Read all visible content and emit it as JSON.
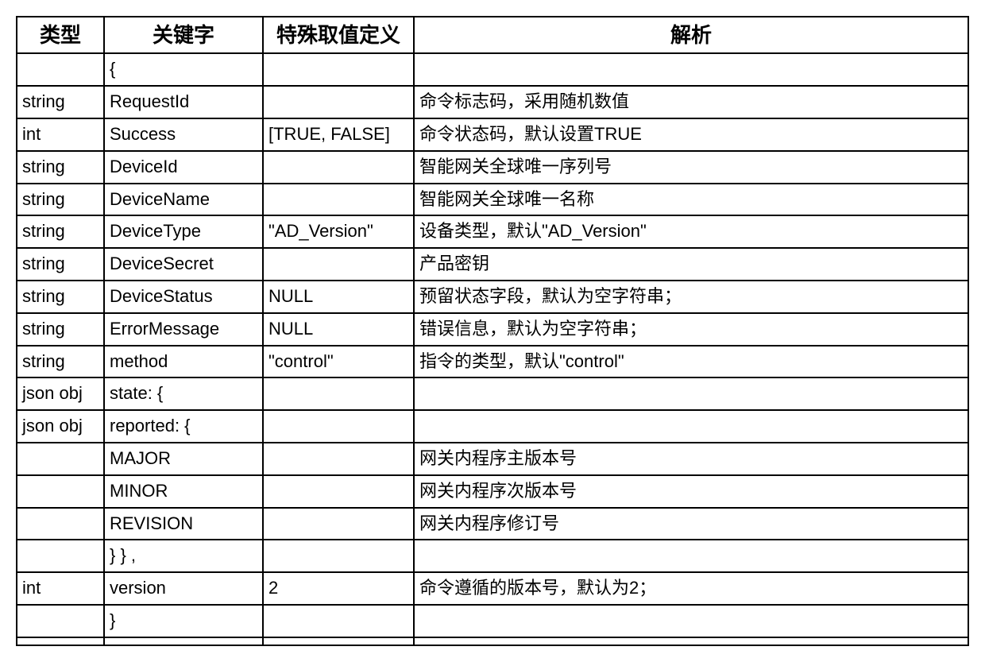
{
  "headers": {
    "type": "类型",
    "keyword": "关键字",
    "special": "特殊取值定义",
    "desc": "解析"
  },
  "rows": [
    {
      "type": "",
      "keyword": "{",
      "special": "",
      "desc": ""
    },
    {
      "type": "string",
      "keyword": "RequestId",
      "special": "",
      "desc": "命令标志码，采用随机数值"
    },
    {
      "type": "int",
      "keyword": "Success",
      "special": "[TRUE, FALSE]",
      "desc": "命令状态码，默认设置TRUE"
    },
    {
      "type": "string",
      "keyword": "DeviceId",
      "special": "",
      "desc": "智能网关全球唯一序列号"
    },
    {
      "type": "string",
      "keyword": "DeviceName",
      "special": "",
      "desc": "智能网关全球唯一名称"
    },
    {
      "type": "string",
      "keyword": "DeviceType",
      "special": "\"AD_Version\"",
      "desc": "设备类型，默认\"AD_Version\""
    },
    {
      "type": "string",
      "keyword": "DeviceSecret",
      "special": "",
      "desc": "产品密钥"
    },
    {
      "type": "string",
      "keyword": "DeviceStatus",
      "special": "NULL",
      "desc": "预留状态字段，默认为空字符串；"
    },
    {
      "type": "string",
      "keyword": "ErrorMessage",
      "special": "NULL",
      "desc": "错误信息，默认为空字符串；"
    },
    {
      "type": "string",
      "keyword": "method",
      "special": "\"control\"",
      "desc": "指令的类型，默认\"control\""
    },
    {
      "type": "json obj",
      "keyword": "state: {",
      "special": "",
      "desc": ""
    },
    {
      "type": "json obj",
      "keyword": "reported: {",
      "special": "",
      "desc": ""
    },
    {
      "type": "",
      "keyword": "MAJOR",
      "special": "",
      "desc": "网关内程序主版本号"
    },
    {
      "type": "",
      "keyword": "MINOR",
      "special": "",
      "desc": "网关内程序次版本号"
    },
    {
      "type": "",
      "keyword": "REVISION",
      "special": "",
      "desc": "网关内程序修订号"
    },
    {
      "type": "",
      "keyword": "} } ,",
      "special": "",
      "desc": ""
    },
    {
      "type": "int",
      "keyword": "version",
      "special": "2",
      "desc": "命令遵循的版本号，默认为2；"
    },
    {
      "type": "",
      "keyword": "}",
      "special": "",
      "desc": ""
    },
    {
      "type": "",
      "keyword": "",
      "special": "",
      "desc": ""
    }
  ],
  "style": {
    "border_color": "#000000",
    "background_color": "#ffffff",
    "header_fontsize": 26,
    "cell_fontsize": 22,
    "col_widths": {
      "type": 110,
      "keyword": 200,
      "special": 190
    }
  }
}
